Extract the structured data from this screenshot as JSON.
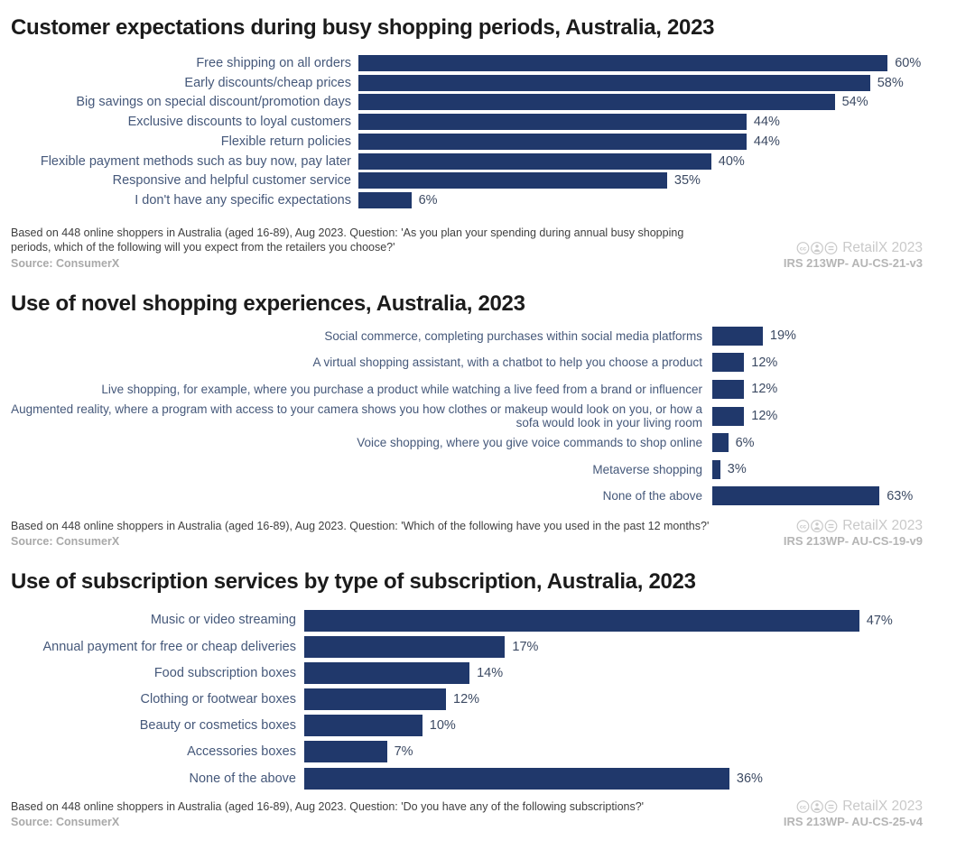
{
  "colors": {
    "bar": "#20386b",
    "category_label": "#45587a",
    "value_label": "#3c4a63",
    "title": "#1b1b1b",
    "note": "#3f3f3f",
    "source": "#a9a9a9",
    "watermark": "#c9c9c9"
  },
  "watermark": {
    "brand": "RetailX 2023"
  },
  "sections": [
    {
      "note": "Based on 448 online shoppers in Australia (aged 16-89), Aug 2023. Question: 'As you plan your spending during annual busy shopping periods, which of the following will you expect from the retailers you choose?'",
      "source": "Source: ConsumerX",
      "watermark_code": "IRS 213WP- AU-CS-21-v3"
    },
    {
      "note": "Based on 448 online shoppers in Australia (aged 16-89), Aug 2023. Question: 'Which of the following have you used in the past 12 months?'",
      "source": "Source: ConsumerX",
      "watermark_code": "IRS 213WP- AU-CS-19-v9"
    },
    {
      "note": "Based on 448 online shoppers in Australia (aged 16-89), Aug 2023. Question: 'Do you have any of the following subscriptions?'",
      "source": "Source: ConsumerX",
      "watermark_code": "IRS 213WP- AU-CS-25-v4"
    }
  ],
  "chart_data": [
    {
      "type": "bar",
      "orientation": "horizontal",
      "title": "Customer expectations during busy shopping periods, Australia, 2023",
      "unit": "%",
      "categories": [
        "Free shipping on all orders",
        "Early discounts/cheap prices",
        "Big savings on special discount/promotion days",
        "Exclusive discounts to loyal customers",
        "Flexible return policies",
        "Flexible payment methods such as buy now, pay later",
        "Responsive and helpful customer service",
        "I don't have any specific expectations"
      ],
      "values": [
        60,
        58,
        54,
        44,
        44,
        40,
        35,
        6
      ],
      "xlim": [
        0,
        68
      ],
      "grid": false,
      "legend": false,
      "value_labels_shown": true
    },
    {
      "type": "bar",
      "orientation": "horizontal",
      "title": "Use of novel shopping experiences, Australia, 2023",
      "unit": "%",
      "categories": [
        "Social commerce, completing purchases within social media platforms",
        "A virtual shopping assistant, with a chatbot to help you choose a product",
        "Live shopping, for example, where you purchase a product while watching a live feed from a brand or influencer",
        "Augmented reality, where a program with access to your camera shows you how clothes or makeup would look on you, or how a sofa would look in your living room",
        "Voice shopping, where you give voice commands to shop online",
        "Metaverse shopping",
        "None of the above"
      ],
      "values": [
        19,
        12,
        12,
        12,
        6,
        3,
        63
      ],
      "xlim": [
        0,
        75
      ],
      "grid": false,
      "legend": false,
      "value_labels_shown": true
    },
    {
      "type": "bar",
      "orientation": "horizontal",
      "title": "Use of subscription services by type of subscription, Australia, 2023",
      "unit": "%",
      "categories": [
        "Music or video streaming",
        "Annual payment for free or cheap deliveries",
        "Food subscription boxes",
        "Clothing or footwear boxes",
        "Beauty or cosmetics boxes",
        "Accessories boxes",
        "None of the above"
      ],
      "values": [
        47,
        17,
        14,
        12,
        10,
        7,
        36
      ],
      "xlim": [
        0,
        52
      ],
      "grid": false,
      "legend": false,
      "value_labels_shown": true
    }
  ]
}
